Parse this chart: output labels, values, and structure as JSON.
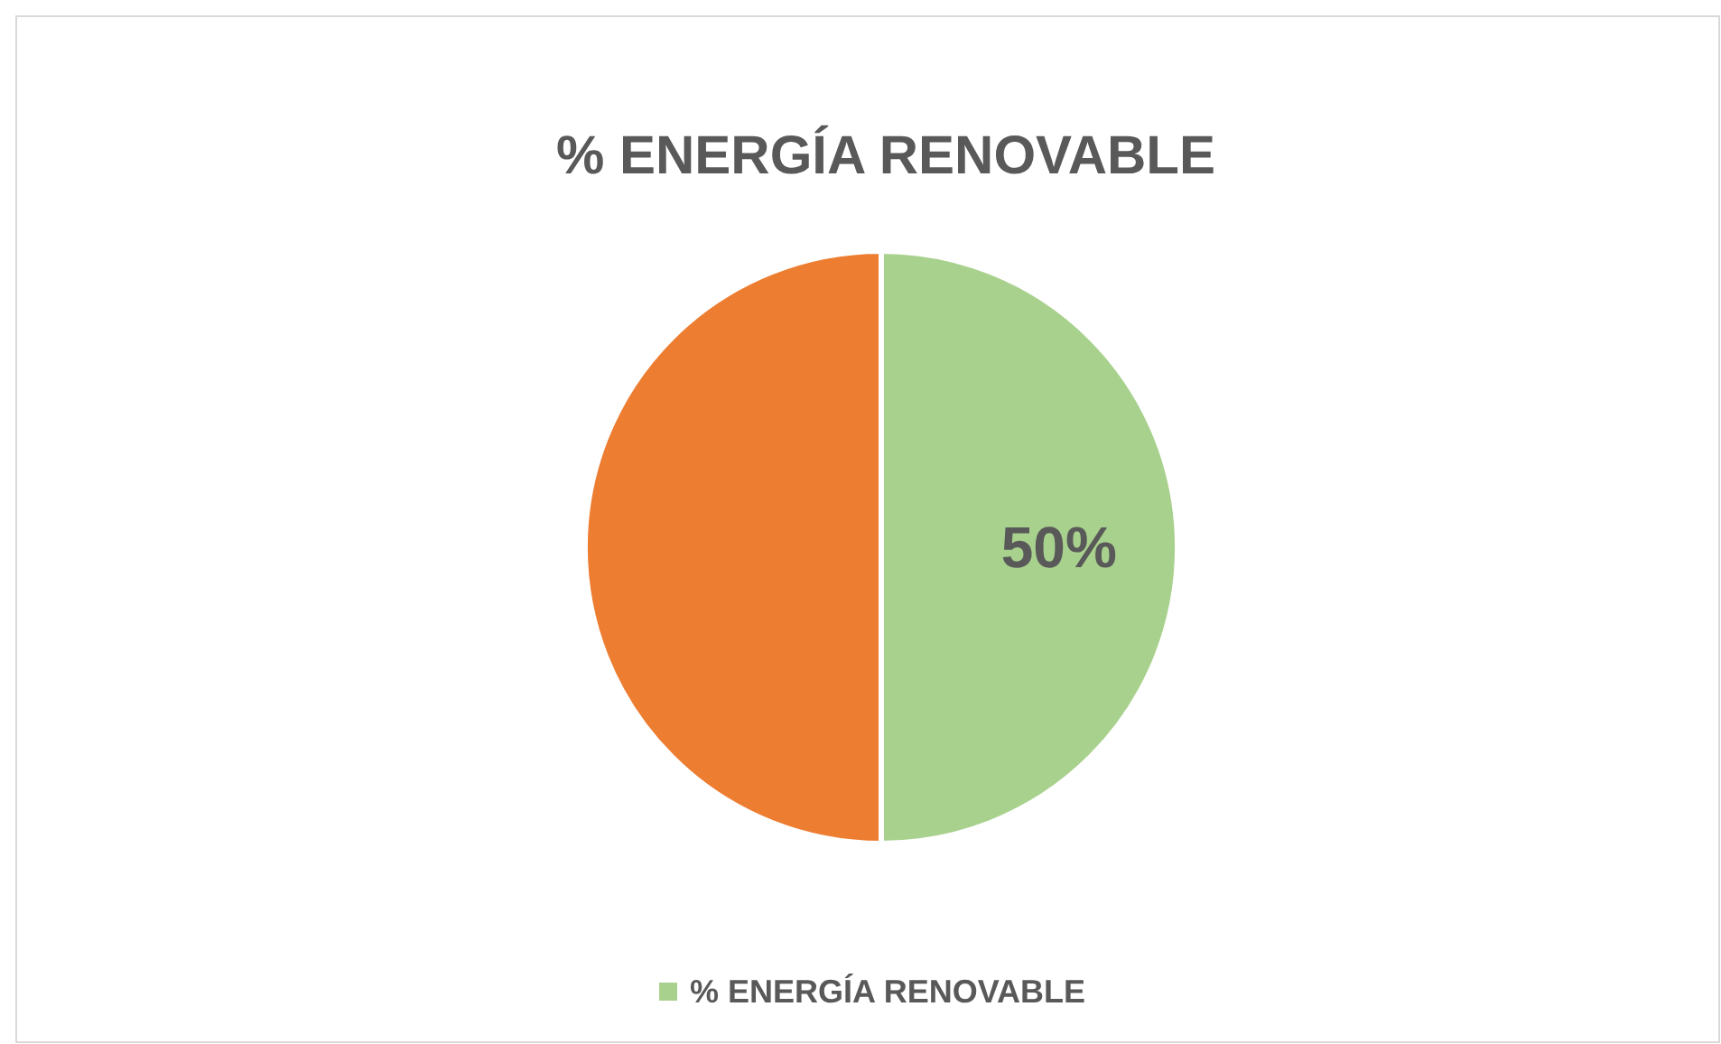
{
  "chart_data": {
    "type": "pie",
    "title": "% ENERGÍA RENOVABLE",
    "categories": [
      "% ENERGÍA RENOVABLE",
      null
    ],
    "values": [
      50,
      50
    ],
    "colors": [
      "#a9d18e",
      "#ed7d31"
    ],
    "value_labels": [
      "50%",
      null
    ],
    "legend": "bottom"
  }
}
